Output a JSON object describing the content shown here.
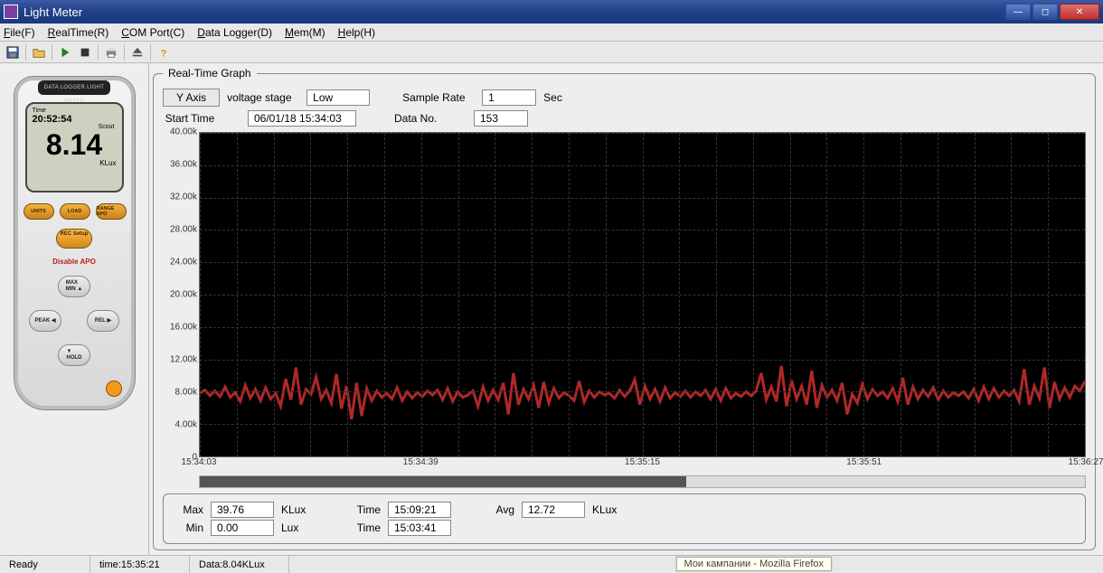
{
  "window": {
    "title": "Light Meter"
  },
  "menu": {
    "file": "File(F)",
    "realtime": "RealTime(R)",
    "comport": "COM Port(C)",
    "datalogger": "Data Logger(D)",
    "mem": "Mem(M)",
    "help": "Help(H)"
  },
  "device": {
    "top_label": "DATA LOGGER LIGHT METER",
    "lcd_time_label": "Time",
    "lcd_clock": "20:52:54",
    "lcd_scout": "Scout",
    "lcd_value": "8.14",
    "lcd_unit": "KLux",
    "btn_units": "UNITS",
    "btn_load": "LOAD",
    "btn_range": "RANGE APO",
    "btn_rec": "REC Setup",
    "disable_apo": "Disable APO",
    "btn_maxmin": "MAX MIN",
    "btn_peak": "PEAK",
    "btn_rel": "REL",
    "btn_hold": "HOLD"
  },
  "controls": {
    "legend": "Real-Time    Graph",
    "yaxis_btn": "Y Axis",
    "voltage_label": "voltage stage",
    "voltage_value": "Low",
    "sample_label": "Sample Rate",
    "sample_value": "1",
    "sample_unit": "Sec",
    "start_label": "Start Time",
    "start_value": "06/01/18 15:34:03",
    "datano_label": "Data No.",
    "datano_value": "153"
  },
  "chart": {
    "ymin": 0,
    "ymax": 40000,
    "yticks": [
      "40.00k",
      "36.00k",
      "32.00k",
      "28.00k",
      "24.00k",
      "20.00k",
      "16.00k",
      "12.00k",
      "8.00k",
      "4.00k",
      "0"
    ],
    "xticks": [
      "15:34:03",
      "15:34:39",
      "15:35:15",
      "15:35:51",
      "15:36:27"
    ],
    "line_color": "#b02828",
    "grid_color": "#333333",
    "background": "#000000",
    "ygrid_count": 11,
    "xgrid_count": 25,
    "values": [
      7800,
      8200,
      7500,
      8100,
      7400,
      8600,
      7300,
      7900,
      6800,
      8800,
      7200,
      8300,
      6900,
      8500,
      7100,
      7800,
      6200,
      9600,
      7000,
      11000,
      6400,
      8300,
      7700,
      9800,
      7100,
      8200,
      6600,
      10200,
      5900,
      8700,
      4600,
      9100,
      5000,
      8400,
      6900,
      8100,
      7300,
      7800,
      7100,
      8500,
      6900,
      8000,
      7200,
      7900,
      7400,
      8100,
      7600,
      8200,
      7000,
      8400,
      6800,
      8000,
      7300,
      7600,
      8100,
      6200,
      8600,
      6900,
      8200,
      7000,
      9100,
      5200,
      10300,
      6400,
      8300,
      7100,
      8800,
      6000,
      9200,
      6600,
      8400,
      7200,
      7900,
      7500,
      6900,
      9300,
      6700,
      8100,
      7300,
      8000,
      7600,
      7800,
      7200,
      8200,
      7400,
      8100,
      9500,
      6400,
      8700,
      7100,
      8300,
      6800,
      8500,
      7200,
      7900,
      7400,
      8100,
      7300,
      8000,
      7500,
      8200,
      7100,
      8300,
      6900,
      8400,
      7200,
      7800,
      7400,
      8000,
      7500,
      8100,
      10300,
      7000,
      8600,
      6800,
      11200,
      6200,
      9400,
      7100,
      8700,
      6400,
      10600,
      6000,
      8800,
      7300,
      8200,
      6900,
      9100,
      5200,
      7700,
      6600,
      8900,
      7100,
      8300,
      7500,
      8000,
      7200,
      8400,
      6800,
      9700,
      6400,
      8600,
      7100,
      8200,
      7400,
      8500,
      7000,
      8100,
      7300,
      7900,
      7500,
      8000,
      7200,
      8300,
      6900,
      8600,
      7100,
      8400,
      7300,
      8100,
      7500,
      8200,
      6800,
      10800,
      6400,
      8700,
      7200,
      11000,
      6000,
      9200,
      7100,
      8500,
      7300,
      8700,
      8100,
      9300
    ]
  },
  "stats": {
    "max_label": "Max",
    "max_val": "39.76",
    "max_unit": "KLux",
    "min_label": "Min",
    "min_val": "0.00",
    "min_unit": "Lux",
    "time1_label": "Time",
    "time1_val": "15:09:21",
    "time2_label": "Time",
    "time2_val": "15:03:41",
    "avg_label": "Avg",
    "avg_val": "12.72",
    "avg_unit": "KLux"
  },
  "status": {
    "ready": "Ready",
    "time": "time:15:35:21",
    "data": "Data:8.04KLux"
  },
  "notification": "Мои кампании - Mozilla Firefox"
}
